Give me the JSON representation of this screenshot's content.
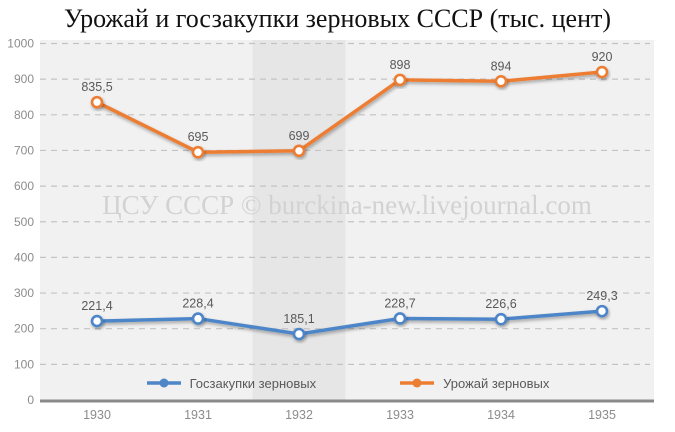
{
  "title": "Урожай и госзакупки зерновых СССР (тыс. цент)",
  "watermark": "ЦСУ СССР © burckina-new.livejournal.com",
  "chart_data": {
    "type": "line",
    "title": "Урожай и госзакупки зерновых СССР (тыс. цент)",
    "categories": [
      "1930",
      "1931",
      "1932",
      "1933",
      "1934",
      "1935"
    ],
    "series": [
      {
        "name": "Госзакупки зерновых",
        "color": "#4E86C8",
        "values": [
          221.4,
          228.4,
          185.1,
          228.7,
          226.6,
          249.3
        ],
        "labels": [
          "221,4",
          "228,4",
          "185,1",
          "228,7",
          "226,6",
          "249,3"
        ]
      },
      {
        "name": "Урожай зерновых",
        "color": "#ED7D31",
        "values": [
          835.5,
          695,
          699,
          898,
          894,
          920
        ],
        "labels": [
          "835,5",
          "695",
          "699",
          "898",
          "894",
          "920"
        ]
      }
    ],
    "xlabel": "",
    "ylabel": "",
    "ylim": [
      0,
      1000
    ],
    "ytick_step": 100,
    "y_ticks": [
      0,
      100,
      200,
      300,
      400,
      500,
      600,
      700,
      800,
      900,
      1000
    ],
    "grid": "horizontal-dashed",
    "legend_position": "bottom",
    "highlight_band_category": "1932",
    "colors": {
      "plot_background": "#f1f1f1",
      "highlight_band": "#e6e6e6",
      "gridline": "#c3c3c3",
      "axis_line": "#8a8a8a",
      "tick_label": "#8c8c8c",
      "data_label": "#595959",
      "marker_fill": "#ffffff"
    }
  }
}
